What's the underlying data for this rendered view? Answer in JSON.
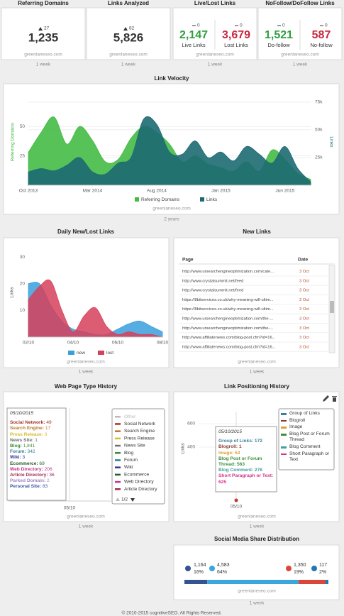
{
  "top_widgets": [
    {
      "title": "Referring Domains",
      "change": "27",
      "value": "1,235",
      "site": "greenlaneseo.com",
      "period": "1 week"
    },
    {
      "title": "Links Analyzed",
      "change": "82",
      "value": "5,826",
      "site": "greenlaneseo.com",
      "period": "1 week"
    },
    {
      "title": "Live/Lost Links",
      "stats": [
        {
          "change": "0",
          "value": "2,147",
          "label": "Live Links",
          "color": "#2e9e3e"
        },
        {
          "change": "0",
          "value": "3,679",
          "label": "Lost Links",
          "color": "#c9283d"
        }
      ],
      "site": "greenlaneseo.com",
      "period": "1 week"
    },
    {
      "title": "NoFollow/DoFollow Links",
      "stats": [
        {
          "change": "0",
          "value": "1,521",
          "label": "Do-follow",
          "color": "#2e9e3e"
        },
        {
          "change": "0",
          "value": "587",
          "label": "No-follow",
          "color": "#c9283d"
        }
      ],
      "site": "greenlaneseo.com",
      "period": "1 week"
    }
  ],
  "link_velocity": {
    "type": "area",
    "title": "Link Velocity",
    "y_label": "Referring Domains",
    "y2_label": "Links",
    "categories": [
      "Oct 2013",
      null,
      null,
      null,
      null,
      "Mar 2014",
      null,
      null,
      null,
      null,
      "Aug 2014",
      null,
      null,
      null,
      null,
      "Jan 2015",
      null,
      null,
      null,
      null,
      "Jun 2015",
      null,
      null
    ],
    "series": [
      {
        "name": "Referring Domains",
        "color": "#45bb45",
        "values": [
          28,
          45,
          58,
          35,
          50,
          38,
          20,
          22,
          40,
          50,
          45,
          35,
          20,
          25,
          18,
          15,
          12,
          20,
          12,
          30,
          22,
          10,
          5
        ]
      },
      {
        "name": "Links",
        "color": "#1d6a72",
        "axis": "y2",
        "values": [
          12000,
          15000,
          13000,
          18000,
          25000,
          12000,
          10000,
          20000,
          25000,
          60000,
          55000,
          30000,
          28000,
          40000,
          25000,
          30000,
          22000,
          35000,
          28000,
          20000,
          35000,
          15000,
          3000
        ]
      }
    ],
    "ylim": [
      0,
      73
    ],
    "yticks": [
      25,
      50
    ],
    "y2lim": [
      0,
      77500
    ],
    "y2ticks": [
      {
        "value": 25000,
        "label": "25k"
      },
      {
        "value": 50000,
        "label": "50k"
      },
      {
        "value": 75000,
        "label": "75k"
      }
    ],
    "grid": true,
    "site": "greenlaneseo.com",
    "period": "2 years"
  },
  "daily_links": {
    "type": "area",
    "title": "Daily New/Lost Links",
    "y_label": "Links",
    "categories": [
      "02/10",
      null,
      null,
      null,
      "04/10",
      null,
      null,
      null,
      "06/10",
      null,
      null,
      null,
      "08/10"
    ],
    "series": [
      {
        "name": "new",
        "color": "#3a9fdc",
        "values": [
          20,
          20,
          12,
          6,
          3,
          2,
          1,
          1,
          3,
          5,
          6,
          4,
          2
        ]
      },
      {
        "name": "lost",
        "color": "#d6405a",
        "values": [
          14,
          19,
          21,
          10,
          2,
          8,
          11,
          4,
          1,
          2,
          1,
          1,
          0
        ]
      }
    ],
    "ylim": [
      0,
      34
    ],
    "yticks": [
      10,
      20,
      30
    ],
    "grid": false,
    "site": "greenlaneseo.com",
    "period": "1 week"
  },
  "new_links": {
    "title": "New Links",
    "columns": [
      "Page",
      "Date"
    ],
    "rows": [
      [
        "http://www.ursearchengineoptimization.com/cate...",
        "3 Oct"
      ],
      [
        "http://www.crystalsummit.net/feed",
        "3 Oct"
      ],
      [
        "http://www.crystalsummit.net/feed",
        "3 Oct"
      ],
      [
        "https://8bitservices.co.uk/why-meaning-will-ultim...",
        "3 Oct"
      ],
      [
        "https://8bitservices.co.uk/why-meaning-will-ultim...",
        "3 Oct"
      ],
      [
        "http://www.ursearchengineoptimization.com/the-...",
        "3 Oct"
      ],
      [
        "http://www.ursearchengineoptimization.com/the-...",
        "3 Oct"
      ],
      [
        "http://www.affiliatenews.com/blog-post.cfm?id=16...",
        "3 Oct"
      ],
      [
        "http://www.affiliatenews.com/blog-post.cfm?id=16...",
        "3 Oct"
      ]
    ],
    "site": "greenlaneseo.com",
    "period": "1 week"
  },
  "page_types": {
    "title": "Web Page Type History",
    "x_tick": "05/10",
    "tooltip": {
      "date": "05/10/2015",
      "items": [
        {
          "name": "Social Network",
          "value": "49",
          "color": "#a8322a"
        },
        {
          "name": "Search Engine",
          "value": "17",
          "color": "#b8782e"
        },
        {
          "name": "Press Release",
          "value": "3",
          "color": "#d9bb2c"
        },
        {
          "name": "News Site",
          "value": "1",
          "color": "#6f6f6f"
        },
        {
          "name": "Blog",
          "value": "1,841",
          "color": "#3f8a35"
        },
        {
          "name": "Forum",
          "value": "342",
          "color": "#2f7d9a"
        },
        {
          "name": "Wiki",
          "value": "3",
          "color": "#35359a"
        },
        {
          "name": "Ecommerce",
          "value": "69",
          "color": "#245f28"
        },
        {
          "name": "Web Directory",
          "value": "206",
          "color": "#c2348e"
        },
        {
          "name": "Article Directory",
          "value": "36",
          "color": "#a3284c"
        },
        {
          "name": "Parked Domain",
          "value": "2",
          "color": "#a285c7"
        },
        {
          "name": "Personal Site",
          "value": "83",
          "color": "#3a5aa3"
        }
      ]
    },
    "legend": {
      "items": [
        {
          "name": "Other",
          "color": "#bbbbbb"
        },
        {
          "name": "Social Network",
          "color": "#a8322a"
        },
        {
          "name": "Search Engine",
          "color": "#b8782e"
        },
        {
          "name": "Press Release",
          "color": "#d9bb2c"
        },
        {
          "name": "News Site",
          "color": "#6f6f6f"
        },
        {
          "name": "Blog",
          "color": "#3f8a35"
        },
        {
          "name": "Forum",
          "color": "#2f7d9a"
        },
        {
          "name": "Wiki",
          "color": "#35359a"
        },
        {
          "name": "Ecommerce",
          "color": "#245f28"
        },
        {
          "name": "Web Directory",
          "color": "#c2348e"
        },
        {
          "name": "Article Directory",
          "color": "#a3284c"
        }
      ],
      "page": "1/2"
    },
    "site": "greenlaneseo.com",
    "period": "1 week"
  },
  "link_positions": {
    "title": "Link Positioning History",
    "y_label": "Links",
    "x_tick": "05/10",
    "ylim": [
      0,
      700
    ],
    "yticks": [
      400,
      600
    ],
    "tooltip_date": "05/10/2015",
    "series": [
      {
        "name": "Group of Links",
        "value": "172",
        "color": "#3a7fa0"
      },
      {
        "name": "Blogroll",
        "value": "1",
        "color": "#8c3b3b"
      },
      {
        "name": "Image",
        "value": "53",
        "color": "#e0a030"
      },
      {
        "name": "Blog Post or Forum Thread",
        "value": "563",
        "color": "#3c8f3c"
      },
      {
        "name": "Blog Comment",
        "value": "276",
        "color": "#3fa0a0"
      },
      {
        "name": "Short Paragraph or Text",
        "value": "625",
        "color": "#d6348a"
      }
    ],
    "site": "greenlaneseo.com",
    "period": "1 week"
  },
  "social_shares": {
    "title": "Social Media Share Distribution",
    "shares": [
      {
        "count": "1,164",
        "percent": 16,
        "percent_label": "16%",
        "color": "#34538f"
      },
      {
        "count": "4,583",
        "percent": 64,
        "percent_label": "64%",
        "color": "#3aa6dd"
      },
      {
        "count": "1,350",
        "percent": 19,
        "percent_label": "19%",
        "color": "#d9473b"
      },
      {
        "count": "117",
        "percent": 2,
        "percent_label": "2%",
        "color": "#1f78b4"
      }
    ],
    "site": "greenlaneseo.com",
    "period": "1 week"
  },
  "footer": "© 2010-2015 cognitiveSEO. All Rights Reserved."
}
